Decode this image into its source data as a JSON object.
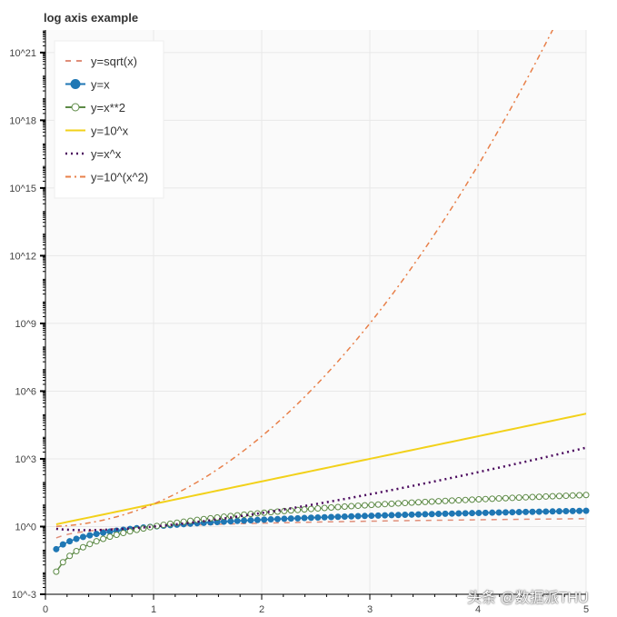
{
  "chart_data": {
    "type": "line",
    "title": "log axis example",
    "xlabel": "",
    "ylabel": "",
    "xlim": [
      0,
      5
    ],
    "ylim": [
      0.001,
      1e+22
    ],
    "y_scale": "log",
    "grid": true,
    "legend_position": "top-left",
    "x_ticks": [
      "0",
      "1",
      "2",
      "3",
      "4",
      "5"
    ],
    "y_ticks": [
      "10^-3",
      "10^0",
      "10^3",
      "10^6",
      "10^9",
      "10^12",
      "10^15",
      "10^18",
      "10^21"
    ],
    "x_domain": {
      "start": 0.1,
      "end": 5,
      "points": 80
    },
    "series": [
      {
        "name": "y=sqrt(x)",
        "function": "sqrt(x)",
        "color": "#e08e79",
        "style": "dashed"
      },
      {
        "name": "y=x",
        "function": "x",
        "color": "#1f77b4",
        "style": "solid",
        "marker": "filled-circle"
      },
      {
        "name": "y=x**2",
        "function": "x**2",
        "color": "#5d8a46",
        "style": "solid",
        "marker": "open-circle"
      },
      {
        "name": "y=10^x",
        "function": "10**x",
        "color": "#f2d11a",
        "style": "solid"
      },
      {
        "name": "y=x^x",
        "function": "x**x",
        "color": "#4b0a5e",
        "style": "dotted"
      },
      {
        "name": "y=10^(x^2)",
        "function": "10**(x**2)",
        "color": "#e8804a",
        "style": "dashdot"
      }
    ]
  },
  "watermark": "头条 @数据派THU"
}
